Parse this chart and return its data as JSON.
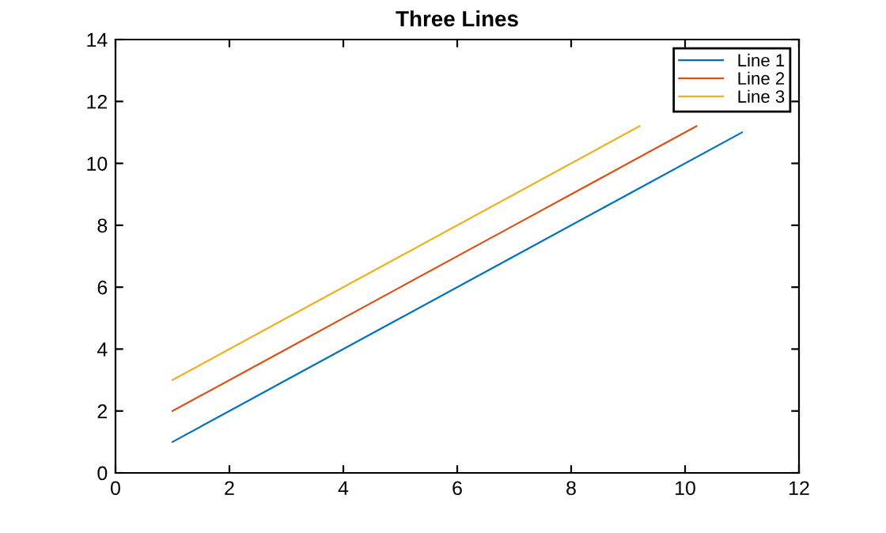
{
  "chart_data": {
    "type": "line",
    "title": "Three Lines",
    "x": [
      1,
      3,
      5,
      7,
      9,
      11
    ],
    "series": [
      {
        "name": "Line 1",
        "color": "#0072bd",
        "values": [
          1,
          3,
          5,
          7,
          9,
          11
        ]
      },
      {
        "name": "Line 2",
        "color": "#d95319",
        "x": [
          1,
          3,
          5,
          7,
          9,
          10.2
        ],
        "values": [
          2,
          4,
          6,
          8,
          10,
          11.2
        ]
      },
      {
        "name": "Line 3",
        "color": "#edb120",
        "x": [
          1,
          3,
          5,
          7,
          9.2
        ],
        "values": [
          3,
          5,
          7,
          9,
          11.2
        ]
      }
    ],
    "xlim": [
      0,
      12
    ],
    "xticks": [
      0,
      2,
      4,
      6,
      8,
      10,
      12
    ],
    "ylim": [
      0,
      14
    ],
    "yticks": [
      0,
      2,
      4,
      6,
      8,
      10,
      12,
      14
    ],
    "legend": "top right",
    "grid": false
  }
}
